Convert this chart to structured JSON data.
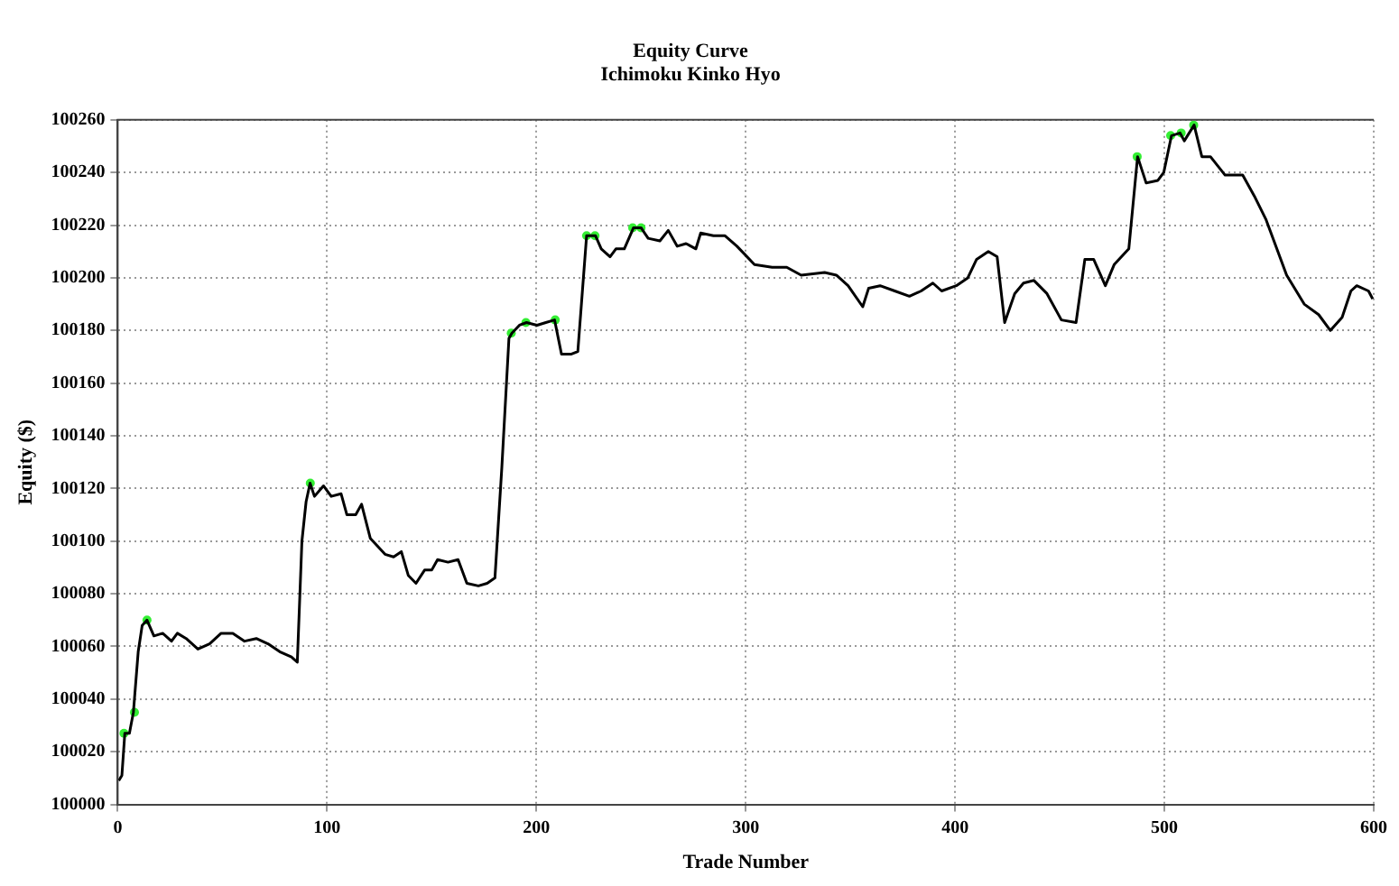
{
  "chart_data": {
    "type": "line",
    "title": "Equity Curve",
    "subtitle": "Ichimoku Kinko Hyo",
    "xlabel": "Trade Number",
    "ylabel": "Equity ($)",
    "xlim": [
      0,
      600
    ],
    "xticks": [
      0,
      100,
      200,
      300,
      400,
      500,
      600
    ],
    "ylim": [
      100000,
      100260
    ],
    "yticks": [
      100000,
      100020,
      100040,
      100060,
      100080,
      100100,
      100120,
      100140,
      100160,
      100180,
      100200,
      100220,
      100240,
      100260
    ],
    "grid": true,
    "legend": false,
    "series": [
      {
        "type": "line",
        "color": "#000000",
        "marker": "none",
        "x": [
          0.5,
          2,
          3.4,
          5.6,
          7.5,
          9.8,
          11.7,
          14,
          17.3,
          21.5,
          25.7,
          28.5,
          32.7,
          38.3,
          43.9,
          49.4,
          55,
          60.6,
          66.2,
          71.8,
          77.4,
          83,
          85.8,
          88,
          90,
          91.9,
          94,
          98.3,
          102,
          106.7,
          109.5,
          113.7,
          116.5,
          120.7,
          127.7,
          131.8,
          135.5,
          138.8,
          142.5,
          146.6,
          150,
          152.8,
          157.8,
          162.6,
          166.8,
          172.3,
          176.5,
          180.2,
          183.5,
          186.9,
          188.3,
          191.9,
          195.3,
          200.3,
          204.5,
          208.7,
          212,
          216.5,
          219.8,
          224,
          228.2,
          231,
          235.2,
          238,
          242,
          246.4,
          250,
          253.4,
          259,
          263,
          267.3,
          271.5,
          276.2,
          278.5,
          284.6,
          290,
          295.8,
          304.2,
          312.6,
          319.6,
          326.5,
          337.7,
          343.3,
          348.9,
          355.9,
          358.7,
          364.2,
          371.2,
          378.2,
          383.8,
          389.4,
          393.6,
          400.6,
          406.1,
          410.3,
          415.9,
          420.1,
          423.7,
          428.5,
          432.7,
          437.7,
          443.9,
          450.8,
          457.8,
          462,
          466.2,
          471.8,
          476,
          483,
          487.2,
          491.3,
          496.9,
          499.7,
          503.4,
          507.5,
          509.5,
          514.2,
          517.9,
          522,
          529,
          537.4,
          543,
          548.6,
          558.4,
          566.8,
          573.7,
          579.3,
          584.9,
          589.1,
          591.9,
          597.5,
          599.5
        ],
        "values": [
          100009,
          100011,
          100027,
          100027,
          100035,
          100058,
          100068,
          100070,
          100064,
          100065,
          100062,
          100065,
          100063,
          100059,
          100061,
          100065,
          100065,
          100062,
          100063,
          100061,
          100058,
          100056,
          100054,
          100100,
          100115,
          100122,
          100117,
          100121,
          100117,
          100118,
          100110,
          100110,
          100114,
          100101,
          100095,
          100094,
          100096,
          100087,
          100084,
          100089,
          100089,
          100093,
          100092,
          100093,
          100084,
          100083,
          100084,
          100086,
          100128,
          100177,
          100179,
          100182,
          100183,
          100182,
          100183,
          100184,
          100171,
          100171,
          100172,
          100216,
          100216,
          100211,
          100208,
          100211,
          100211,
          100219,
          100219,
          100215,
          100214,
          100218,
          100212,
          100213,
          100211,
          100217,
          100216,
          100216,
          100212,
          100205,
          100204,
          100204,
          100201,
          100202,
          100201,
          100197,
          100189,
          100196,
          100197,
          100195,
          100193,
          100195,
          100198,
          100195,
          100197,
          100200,
          100207,
          100210,
          100208,
          100183,
          100194,
          100198,
          100199,
          100194,
          100184,
          100183,
          100207,
          100207,
          100197,
          100205,
          100211,
          100246,
          100236,
          100237,
          100240,
          100254,
          100255,
          100252,
          100258,
          100246,
          100246,
          100239,
          100239,
          100231,
          100222,
          100201,
          100190,
          100186,
          100180,
          100185,
          100195,
          100197,
          100195,
          100192
        ]
      },
      {
        "type": "scatter",
        "color": "#33ee33",
        "marker": "circle",
        "x": [
          3,
          8,
          14,
          92,
          188,
          195,
          209,
          224,
          228,
          246,
          250,
          487,
          503,
          508,
          514
        ],
        "values": [
          100027,
          100035,
          100070,
          100122,
          100179,
          100183,
          100184,
          100216,
          100216,
          100219,
          100219,
          100246,
          100254,
          100255,
          100258
        ]
      }
    ]
  }
}
